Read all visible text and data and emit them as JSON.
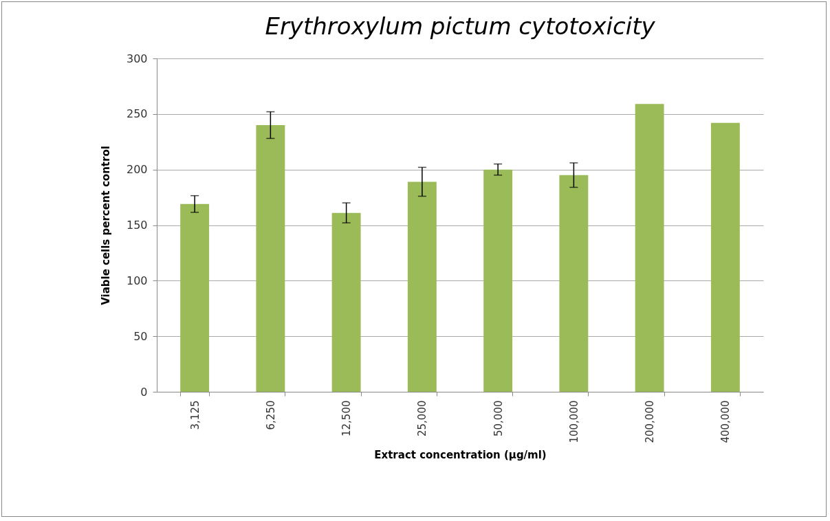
{
  "chart_data": {
    "type": "bar",
    "title": "Erythroxylum pictum cytotoxicity",
    "xlabel": "Extract concentration (µg/ml)",
    "ylabel": "Viable cells percent control",
    "categories": [
      "3,125",
      "6,250",
      "12,500",
      "25,000",
      "50,000",
      "100,000",
      "200,000",
      "400,000"
    ],
    "values": [
      169,
      240,
      161,
      189,
      200,
      195,
      259,
      242
    ],
    "errors": [
      7.5,
      12,
      9,
      13,
      5,
      11,
      null,
      null
    ],
    "color": "#9bbb59",
    "ylim": [
      0,
      300
    ],
    "yticks": [
      0,
      50,
      100,
      150,
      200,
      250,
      300
    ],
    "grid": "y"
  }
}
